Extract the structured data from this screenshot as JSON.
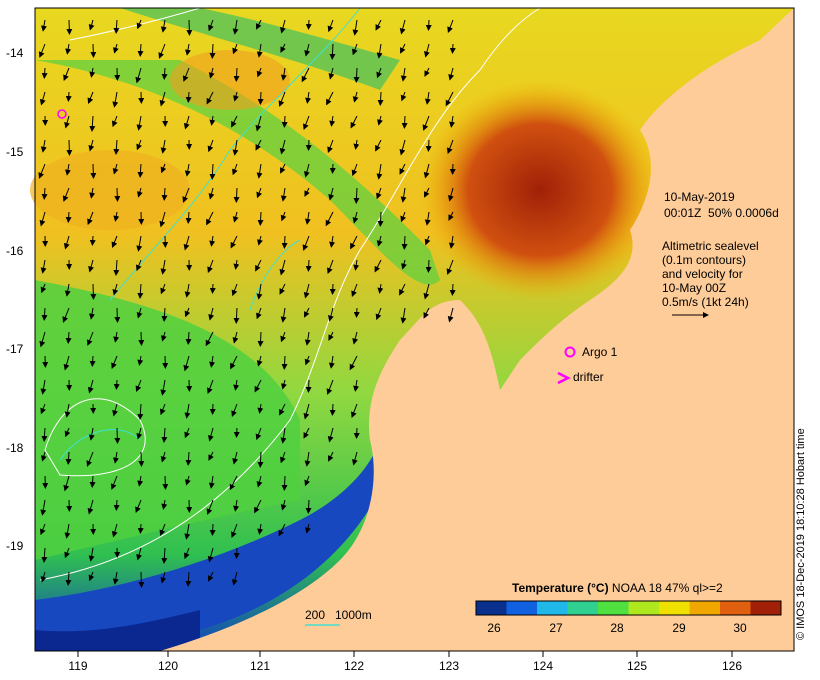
{
  "map": {
    "lon_ticks": [
      "119",
      "120",
      "121",
      "122",
      "123",
      "124",
      "125",
      "126"
    ],
    "lat_ticks": [
      "-14",
      "-15",
      "-16",
      "-17",
      "-18",
      "-19"
    ]
  },
  "info": {
    "date": "10-May-2019",
    "time_line": "00:01Z  50% 0.0006d",
    "altimetric_lines": [
      "Altimetric sealevel",
      "(0.1m contours)",
      "and velocity for",
      "10-May 00Z",
      "0.5m/s (1kt 24h)"
    ]
  },
  "legend": {
    "argo_label": "Argo 1",
    "drifter_label": "drifter",
    "argo_color": "#ff00ff",
    "drifter_color": "#ff00ff"
  },
  "depth_legend": {
    "label_200": "200",
    "label_1000": "1000m",
    "color_200": "#40e0d0",
    "color_1000": "#ffffff"
  },
  "colorbar": {
    "title_bold": "Temperature (°C)",
    "title_rest": " NOAA 18 47% ql>=2",
    "ticks": [
      "26",
      "27",
      "28",
      "29",
      "30"
    ],
    "colors": [
      "#08308c",
      "#1060e0",
      "#20b8e8",
      "#30d090",
      "#50e040",
      "#b0e820",
      "#f0e000",
      "#f0a800",
      "#e06010",
      "#a02008"
    ]
  },
  "credit": "© IMOS 18-Dec-2019 18:10:28 Hobart time"
}
